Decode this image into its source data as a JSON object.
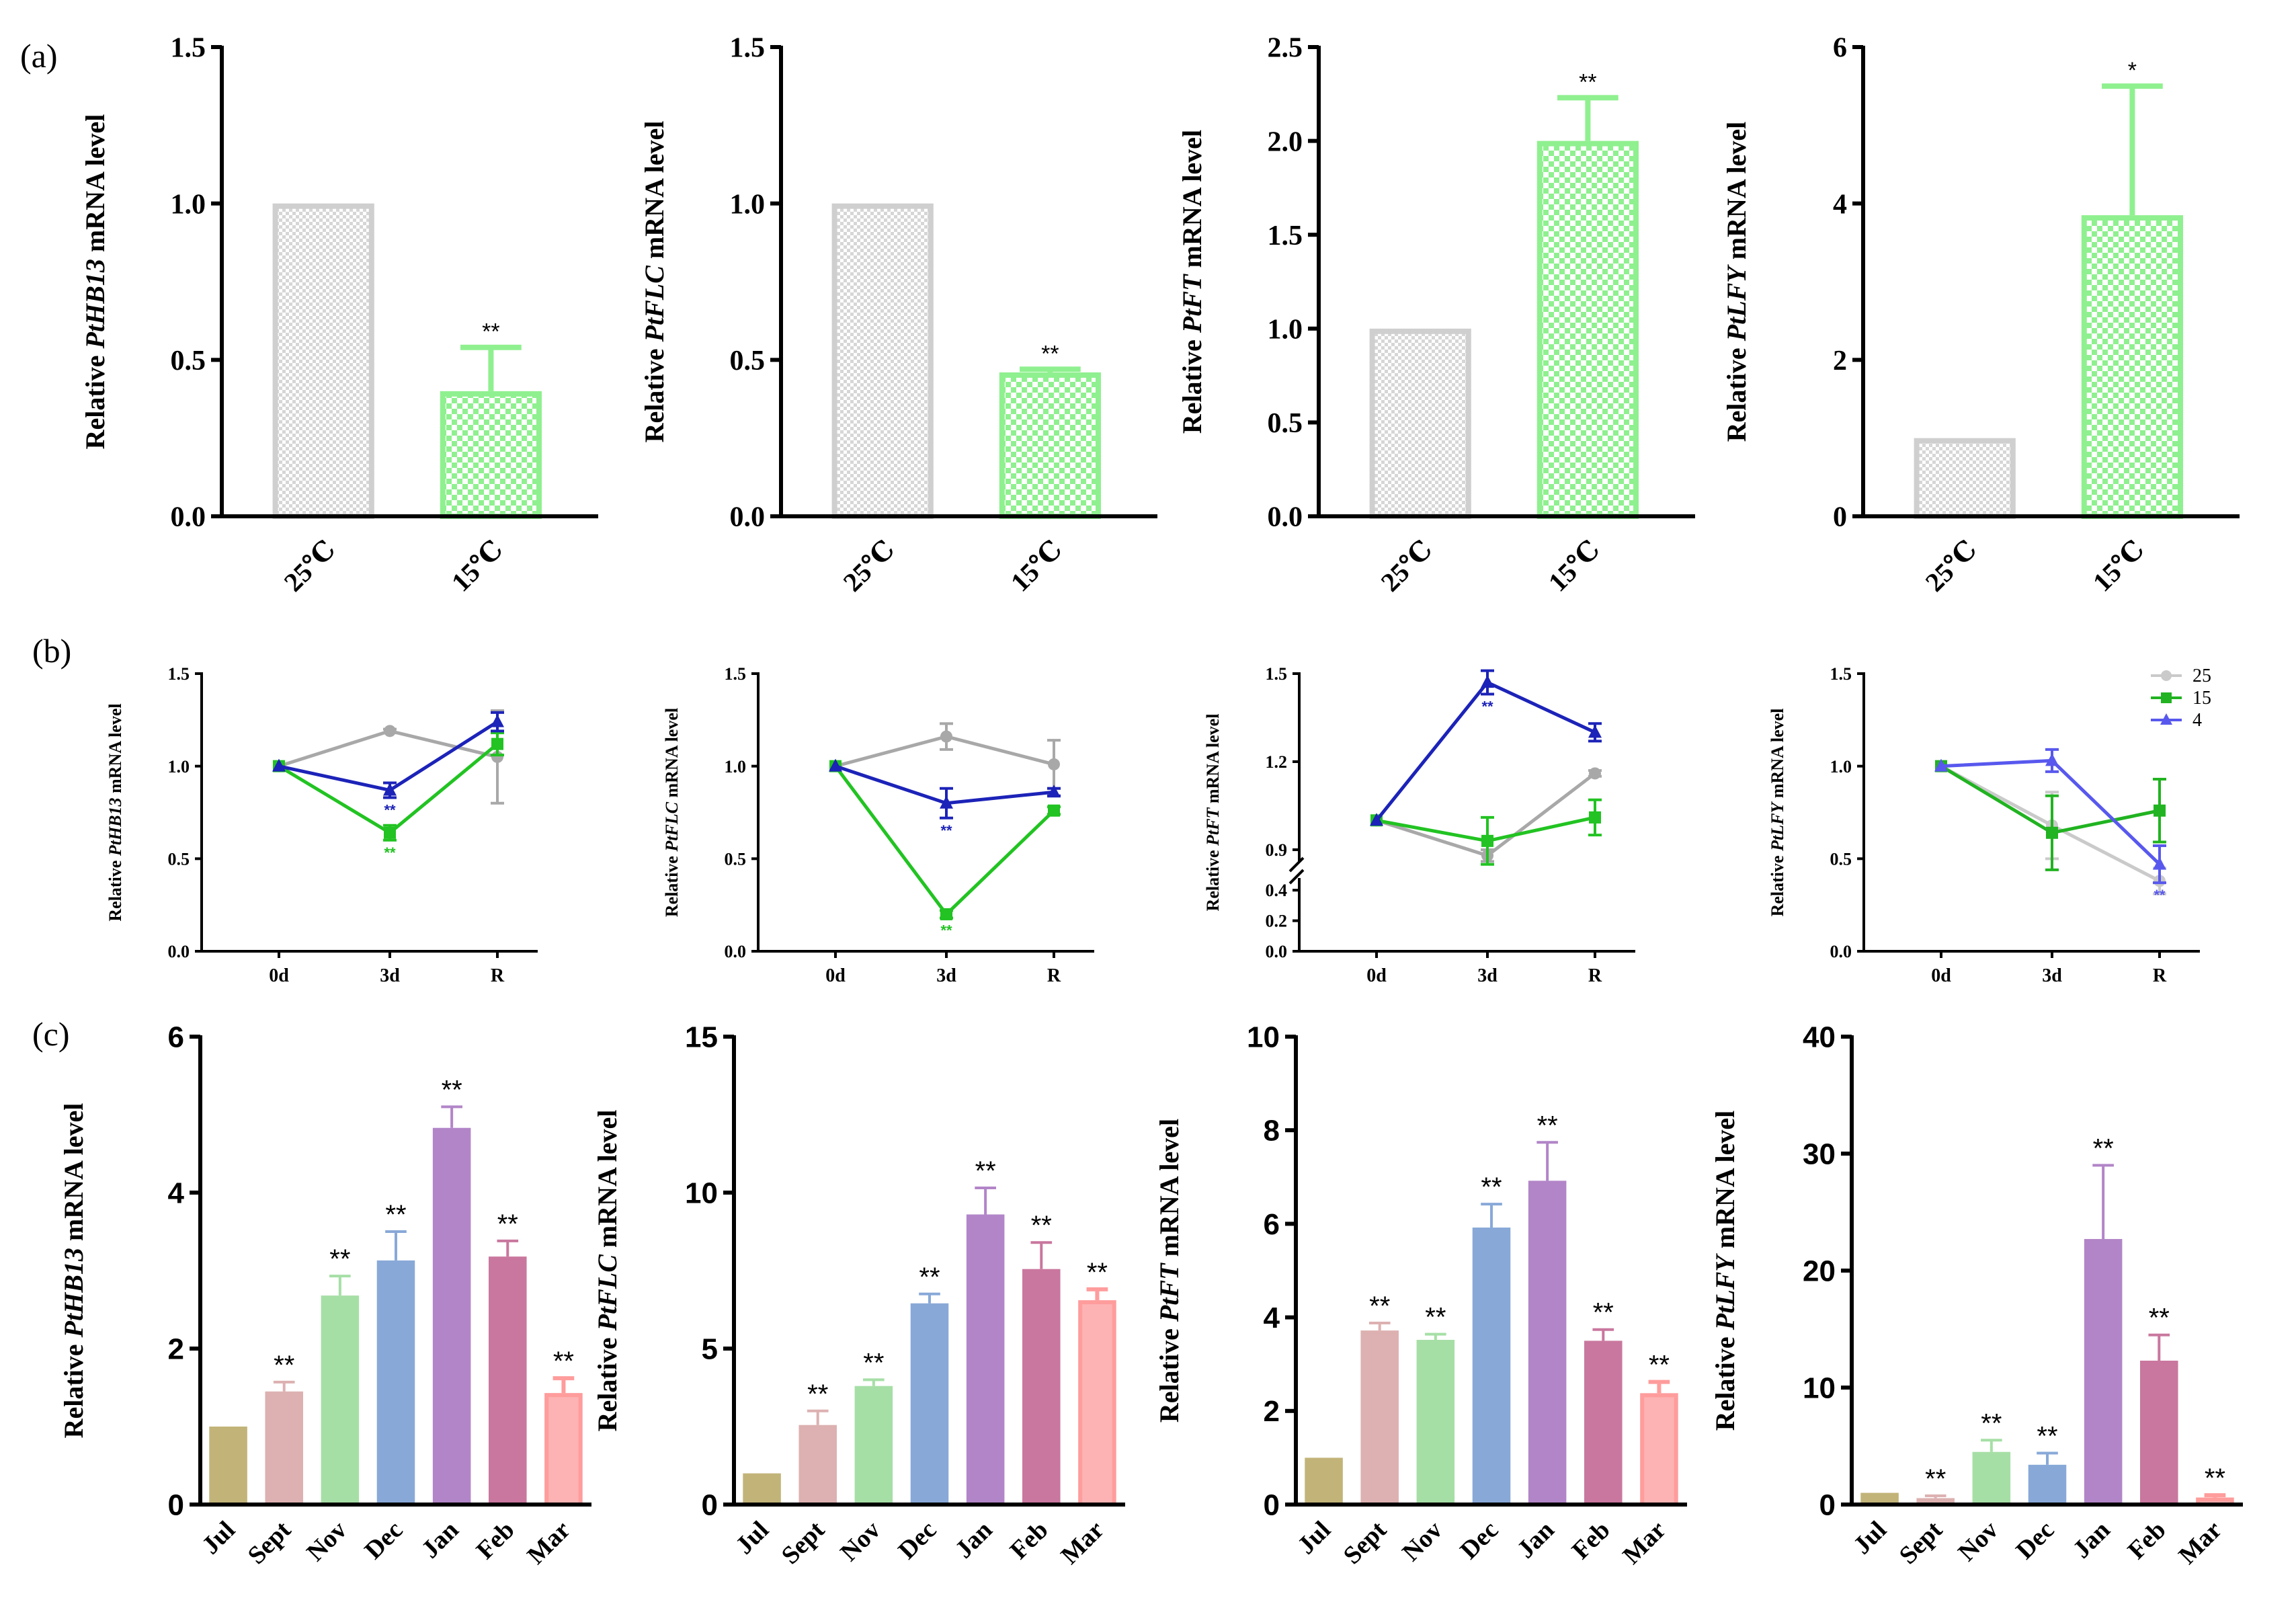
{
  "figure": {
    "panel_labels": [
      "(a)",
      "(b)",
      "(c)"
    ]
  },
  "colors": {
    "grey": "#cfcfcf",
    "green_light": "#8ff08f",
    "line_grey": "#a8a8a8",
    "line_green": "#22c322",
    "line_blue": "#1c23b8",
    "line_lightgrey": "#cacaca",
    "line_green2": "#21b321",
    "line_blue2": "#5858ee",
    "month_colors": [
      "#c2b479",
      "#ddb1b1",
      "#a6dfa6",
      "#88a9d8",
      "#b285c8",
      "#c9779e",
      "#fdb3b3"
    ]
  },
  "chart_data": [
    {
      "type": "bar",
      "row": "a",
      "ylabel_pre": "Relative ",
      "gene": "PtHB13",
      "ylabel_post": " mRNA level",
      "categories": [
        "25℃",
        "15℃"
      ],
      "values": [
        1.0,
        0.4
      ],
      "errors": [
        0,
        0.14
      ],
      "sig": [
        "",
        "**"
      ],
      "ylim": [
        0,
        1.5
      ],
      "ticks": [
        "0.0",
        "0.5",
        "1.0",
        "1.5"
      ],
      "tickvals": [
        0,
        0.5,
        1.0,
        1.5
      ]
    },
    {
      "type": "bar",
      "row": "a",
      "ylabel_pre": "Relative ",
      "gene": "PtFLC",
      "ylabel_post": " mRNA level",
      "categories": [
        "25℃",
        "15℃"
      ],
      "values": [
        1.0,
        0.46
      ],
      "errors": [
        0,
        0.01
      ],
      "sig": [
        "",
        "**"
      ],
      "ylim": [
        0,
        1.5
      ],
      "ticks": [
        "0.0",
        "0.5",
        "1.0",
        "1.5"
      ],
      "tickvals": [
        0,
        0.5,
        1.0,
        1.5
      ]
    },
    {
      "type": "bar",
      "row": "a",
      "ylabel_pre": "Relative ",
      "gene": "PtFT",
      "ylabel_post": " mRNA level",
      "categories": [
        "25℃",
        "15℃"
      ],
      "values": [
        1.0,
        2.0
      ],
      "errors": [
        0,
        0.23
      ],
      "sig": [
        "",
        "**"
      ],
      "ylim": [
        0,
        2.5
      ],
      "ticks": [
        "0.0",
        "0.5",
        "1.0",
        "1.5",
        "2.0",
        "2.5"
      ],
      "tickvals": [
        0,
        0.5,
        1.0,
        1.5,
        2.0,
        2.5
      ]
    },
    {
      "type": "bar",
      "row": "a",
      "ylabel_pre": "Relative ",
      "gene": "PtLFY",
      "ylabel_post": " mRNA level",
      "categories": [
        "25℃",
        "15℃"
      ],
      "values": [
        1.0,
        3.85
      ],
      "errors": [
        0,
        1.65
      ],
      "sig": [
        "",
        "*"
      ],
      "ylim": [
        0,
        6
      ],
      "ticks": [
        "0",
        "2",
        "4",
        "6"
      ],
      "tickvals": [
        0,
        2,
        4,
        6
      ]
    },
    {
      "type": "line",
      "row": "b",
      "ylabel_pre": "Relative ",
      "gene": "PtHB13",
      "ylabel_post": " mRNA level",
      "x": [
        "0d",
        "3d",
        "R"
      ],
      "ylim": [
        0,
        1.5
      ],
      "ticks": [
        "0.0",
        "0.5",
        "1.0",
        "1.5"
      ],
      "tickvals": [
        0,
        0.5,
        1.0,
        1.5
      ],
      "series": [
        {
          "name": "25",
          "values": [
            1.0,
            1.19,
            1.05
          ],
          "errors": [
            0,
            0.01,
            0.25
          ]
        },
        {
          "name": "15",
          "values": [
            1.0,
            0.64,
            1.12
          ],
          "errors": [
            0,
            0.04,
            0.06
          ],
          "sig": [
            "",
            "**",
            ""
          ]
        },
        {
          "name": "4",
          "values": [
            1.0,
            0.87,
            1.24
          ],
          "errors": [
            0,
            0.04,
            0.05
          ],
          "sig": [
            "",
            "**",
            ""
          ]
        }
      ]
    },
    {
      "type": "line",
      "row": "b",
      "ylabel_pre": "Relative ",
      "gene": "PtFLC",
      "ylabel_post": " mRNA level",
      "x": [
        "0d",
        "3d",
        "R"
      ],
      "ylim": [
        0,
        1.5
      ],
      "ticks": [
        "0.0",
        "0.5",
        "1.0",
        "1.5"
      ],
      "tickvals": [
        0,
        0.5,
        1.0,
        1.5
      ],
      "series": [
        {
          "name": "25",
          "values": [
            1.0,
            1.16,
            1.01
          ],
          "errors": [
            0,
            0.07,
            0.13
          ]
        },
        {
          "name": "15",
          "values": [
            1.0,
            0.2,
            0.76
          ],
          "errors": [
            0,
            0.02,
            0.02
          ],
          "sig": [
            "",
            "**",
            ""
          ]
        },
        {
          "name": "4",
          "values": [
            1.0,
            0.8,
            0.86
          ],
          "errors": [
            0,
            0.08,
            0.02
          ],
          "sig": [
            "",
            "**",
            ""
          ]
        }
      ]
    },
    {
      "type": "line",
      "row": "b",
      "ylabel_pre": "Relative ",
      "gene": "PtFT",
      "ylabel_post": " mRNA level",
      "x": [
        "0d",
        "3d",
        "R"
      ],
      "ylim": [
        0,
        1.5
      ],
      "ticks": [
        "0.0",
        "0.2",
        "0.4",
        "0.9",
        "1.2",
        "1.5"
      ],
      "tickvals": [
        0,
        0.2,
        0.4,
        0.9,
        1.2,
        1.5
      ],
      "broken_axis": true,
      "series": [
        {
          "name": "25",
          "values": [
            1.0,
            0.88,
            1.16
          ],
          "errors": [
            0,
            0.02,
            0.01
          ]
        },
        {
          "name": "15",
          "values": [
            1.0,
            0.93,
            1.01
          ],
          "errors": [
            0,
            0.08,
            0.06
          ]
        },
        {
          "name": "4",
          "values": [
            1.0,
            1.47,
            1.3
          ],
          "errors": [
            0,
            0.04,
            0.03
          ],
          "sig": [
            "",
            "**",
            ""
          ]
        }
      ]
    },
    {
      "type": "line",
      "row": "b",
      "ylabel_pre": "Relative ",
      "gene": "PtLFY",
      "ylabel_post": " mRNA level",
      "x": [
        "0d",
        "3d",
        "R"
      ],
      "ylim": [
        0,
        1.5
      ],
      "ticks": [
        "0.0",
        "0.5",
        "1.0",
        "1.5"
      ],
      "tickvals": [
        0,
        0.5,
        1.0,
        1.5
      ],
      "legend": [
        "25",
        "15",
        "4"
      ],
      "legend_position": "top-right",
      "series": [
        {
          "name": "25",
          "values": [
            1.0,
            0.68,
            0.38
          ],
          "errors": [
            0,
            0.18,
            0.07
          ]
        },
        {
          "name": "15",
          "values": [
            1.0,
            0.64,
            0.76
          ],
          "errors": [
            0,
            0.2,
            0.17
          ]
        },
        {
          "name": "4",
          "values": [
            1.0,
            1.03,
            0.47
          ],
          "errors": [
            0,
            0.06,
            0.1
          ],
          "sig": [
            "",
            "",
            "**"
          ]
        }
      ]
    },
    {
      "type": "bar",
      "row": "c",
      "ylabel_pre": "Relative ",
      "gene": "PtHB13",
      "ylabel_post": " mRNA level",
      "categories": [
        "Jul",
        "Sept",
        "Nov",
        "Dec",
        "Jan",
        "Feb",
        "Mar"
      ],
      "values": [
        1.0,
        1.45,
        2.68,
        3.13,
        4.83,
        3.18,
        1.43
      ],
      "errors": [
        0,
        0.12,
        0.25,
        0.37,
        0.27,
        0.2,
        0.19
      ],
      "sig": [
        "",
        "**",
        "**",
        "**",
        "**",
        "**",
        "**"
      ],
      "ylim": [
        0,
        6
      ],
      "ticks": [
        "0",
        "2",
        "4",
        "6"
      ],
      "tickvals": [
        0,
        2,
        4,
        6
      ]
    },
    {
      "type": "bar",
      "row": "c",
      "ylabel_pre": "Relative ",
      "gene": "PtFLC",
      "ylabel_post": " mRNA level",
      "categories": [
        "Jul",
        "Sept",
        "Nov",
        "Dec",
        "Jan",
        "Feb",
        "Mar"
      ],
      "values": [
        1.0,
        2.55,
        3.8,
        6.45,
        9.3,
        7.55,
        6.55
      ],
      "errors": [
        0,
        0.45,
        0.2,
        0.3,
        0.85,
        0.85,
        0.35
      ],
      "sig": [
        "",
        "**",
        "**",
        "**",
        "**",
        "**",
        "**"
      ],
      "ylim": [
        0,
        15
      ],
      "ticks": [
        "0",
        "5",
        "10",
        "15"
      ],
      "tickvals": [
        0,
        5,
        10,
        15
      ]
    },
    {
      "type": "bar",
      "row": "c",
      "ylabel_pre": "Relative ",
      "gene": "PtFT",
      "ylabel_post": " mRNA level",
      "categories": [
        "Jul",
        "Sept",
        "Nov",
        "Dec",
        "Jan",
        "Feb",
        "Mar"
      ],
      "values": [
        1.0,
        3.72,
        3.52,
        5.92,
        6.92,
        3.5,
        2.38
      ],
      "errors": [
        0,
        0.16,
        0.12,
        0.5,
        0.82,
        0.24,
        0.24
      ],
      "sig": [
        "",
        "**",
        "**",
        "**",
        "**",
        "**",
        "**"
      ],
      "ylim": [
        0,
        10
      ],
      "ticks": [
        "0",
        "2",
        "4",
        "6",
        "8",
        "10"
      ],
      "tickvals": [
        0,
        2,
        4,
        6,
        8,
        10
      ]
    },
    {
      "type": "bar",
      "row": "c",
      "ylabel_pre": "Relative ",
      "gene": "PtLFY",
      "ylabel_post": " mRNA level",
      "categories": [
        "Jul",
        "Sept",
        "Nov",
        "Dec",
        "Jan",
        "Feb",
        "Mar"
      ],
      "values": [
        1.0,
        0.55,
        4.5,
        3.4,
        22.7,
        12.3,
        0.6
      ],
      "errors": [
        0,
        0.2,
        1.0,
        1.0,
        6.3,
        2.2,
        0.2
      ],
      "sig": [
        "",
        "**",
        "**",
        "**",
        "**",
        "**",
        "**"
      ],
      "ylim": [
        0,
        40
      ],
      "ticks": [
        "0",
        "10",
        "20",
        "30",
        "40"
      ],
      "tickvals": [
        0,
        10,
        20,
        30,
        40
      ]
    }
  ]
}
